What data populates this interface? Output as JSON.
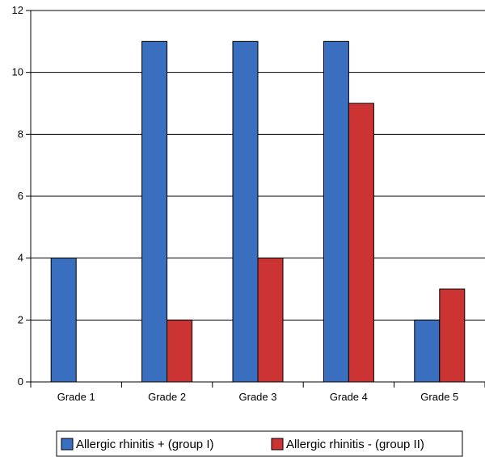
{
  "chart_data": {
    "type": "bar",
    "categories": [
      "Grade 1",
      "Grade 2",
      "Grade 3",
      "Grade 4",
      "Grade 5"
    ],
    "series": [
      {
        "name": "Allergic rhinitis + (group I)",
        "values": [
          4,
          11,
          11,
          11,
          2
        ],
        "color": "#3a6fc0"
      },
      {
        "name": "Allergic rhinitis - (group II)",
        "values": [
          0,
          2,
          4,
          9,
          3
        ],
        "color": "#cc3333"
      }
    ],
    "ylim": [
      0,
      12
    ],
    "yticks": [
      0,
      2,
      4,
      6,
      8,
      10,
      12
    ],
    "grid": true,
    "legend_position": "bottom"
  }
}
